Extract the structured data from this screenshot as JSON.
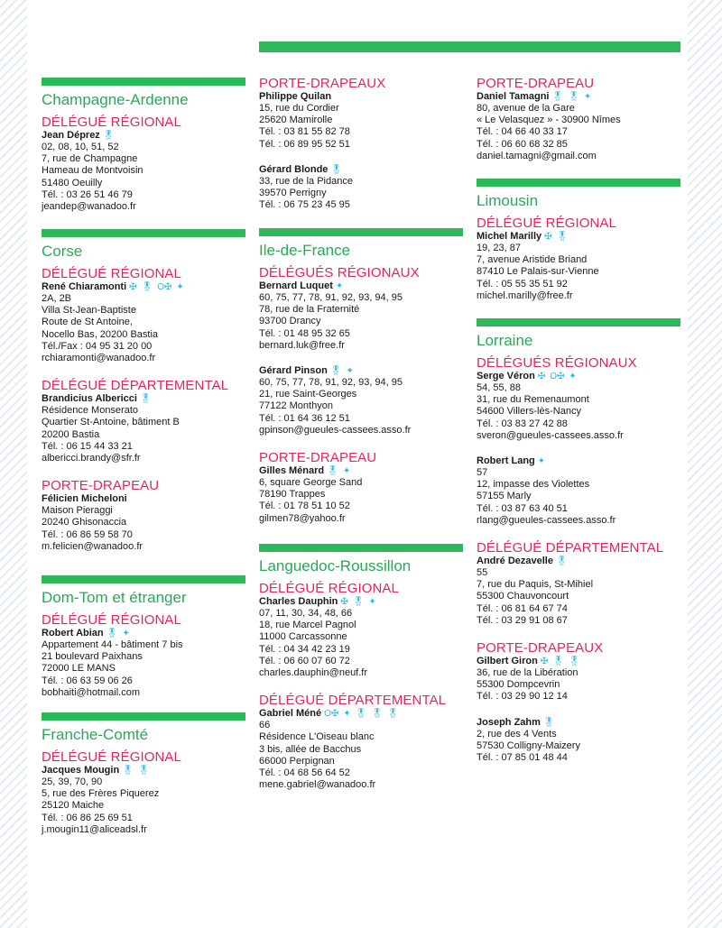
{
  "medal_icons": {
    "medal-icon": "🎖",
    "cross-medal-icon": "✠",
    "order-medal-icon": "O",
    "star-medal-icon": "✦"
  },
  "colors": {
    "green": "#2db85a",
    "title_green": "#2aa85a",
    "role_pink": "#e3265a",
    "medal_blue": "#2fb8e5"
  },
  "col1": {
    "champagne": {
      "title": "Champagne-Ardenne",
      "roles": [
        {
          "label": "DÉLÉGUÉ RÉGIONAL",
          "people": [
            {
              "name": "Jean Déprez",
              "medals": [
                "🎖"
              ],
              "lines": [
                "02, 08, 10, 51, 52",
                "7, rue de Champagne",
                "Hameau de Montvoisin",
                "51480 Oeuilly",
                "Tél. : 03 26 51 46 79",
                "jeandep@wanadoo.fr"
              ]
            }
          ]
        }
      ]
    },
    "corse": {
      "title": "Corse",
      "roles": [
        {
          "label": "DÉLÉGUÉ RÉGIONAL",
          "people": [
            {
              "name": "René Chiaramonti",
              "medals": [
                "✠",
                "🎖",
                "O✠",
                "✦"
              ],
              "lines": [
                "2A, 2B",
                "Villa St-Jean-Baptiste",
                "Route de St Antoine,",
                "Nocello Bas, 20200 Bastia",
                "Tél./Fax : 04 95 31 20 00",
                "rchiaramonti@wanadoo.fr"
              ]
            }
          ]
        },
        {
          "label": "DÉLÉGUÉ DÉPARTEMENTAL",
          "people": [
            {
              "name": "Brandicius Albericci",
              "medals": [
                "🎖"
              ],
              "lines": [
                "Résidence Monserato",
                "Quartier St-Antoine, bâtiment B",
                "20200 Bastia",
                "Tél. : 06 15 44 33 21",
                "albericci.brandy@sfr.fr"
              ]
            }
          ]
        },
        {
          "label": "PORTE-DRAPEAU",
          "people": [
            {
              "name": "Félicien Micheloni",
              "medals": [],
              "lines": [
                "Maison Pieraggi",
                "20240 Ghisonaccia",
                "Tél. : 06 86 59 58 70",
                "m.felicien@wanadoo.fr"
              ]
            }
          ]
        }
      ]
    },
    "domtom": {
      "title": "Dom-Tom et étranger",
      "roles": [
        {
          "label": "DÉLÉGUÉ RÉGIONAL",
          "people": [
            {
              "name": "Robert Abian",
              "medals": [
                "🎖",
                "✦"
              ],
              "lines": [
                "Appartement 44 - bâtiment 7 bis",
                "21 boulevard Paixhans",
                "72000 LE MANS",
                "Tél. : 06 63 59 06 26",
                "bobhaiti@hotmail.com"
              ]
            }
          ]
        }
      ]
    },
    "franche": {
      "title": "Franche-Comté",
      "roles": [
        {
          "label": "DÉLÉGUÉ RÉGIONAL",
          "people": [
            {
              "name": "Jacques Mougin",
              "medals": [
                "🎖",
                "🎖"
              ],
              "lines": [
                "25, 39, 70, 90",
                "5, rue des Frères Piquerez",
                "25120 Maiche",
                "Tél. : 06 86 25 69 51",
                "j.mougin11@aliceadsl.fr"
              ]
            }
          ]
        }
      ]
    }
  },
  "col2": {
    "portedrap": {
      "title": "",
      "roles": [
        {
          "label": "PORTE-DRAPEAUX",
          "people": [
            {
              "name": "Philippe Quilan",
              "medals": [],
              "lines": [
                "15, rue du Cordier",
                "25620 Mamirolle",
                "Tél. : 03 81 55 82 78",
                "Tél. : 06 89 95 52 51"
              ]
            },
            {
              "name": "Gérard Blonde",
              "medals": [
                "🎖"
              ],
              "lines": [
                "33, rue de la Pidance",
                "39570 Perrigny",
                "Tél. : 06 75 23 45 95"
              ]
            }
          ]
        }
      ]
    },
    "idf": {
      "title": "Ile-de-France",
      "roles": [
        {
          "label": "DÉLÉGUÉS RÉGIONAUX",
          "people": [
            {
              "name": "Bernard Luquet",
              "medals": [
                "✦"
              ],
              "lines": [
                "60, 75, 77, 78, 91, 92, 93, 94, 95",
                "78, rue de la Fraternité",
                "93700 Drancy",
                "Tél. : 01 48 95 32 65",
                "bernard.luk@free.fr"
              ]
            },
            {
              "name": "Gérard Pinson",
              "medals": [
                "🎖",
                "✦"
              ],
              "lines": [
                "60, 75, 77, 78, 91, 92, 93, 94, 95",
                "21, rue Saint-Georges",
                "77122 Monthyon",
                "Tél. : 01 64 36 12 51",
                "gpinson@gueules-cassees.asso.fr"
              ]
            }
          ]
        },
        {
          "label": "PORTE-DRAPEAU",
          "people": [
            {
              "name": "Gilles Ménard",
              "medals": [
                "🎖",
                "✦"
              ],
              "lines": [
                "6, square George Sand",
                "78190 Trappes",
                "Tél. : 01 78 51 10 52",
                "gilmen78@yahoo.fr"
              ]
            }
          ]
        }
      ]
    },
    "languedoc": {
      "title": "Languedoc-Roussillon",
      "roles": [
        {
          "label": "DÉLÉGUÉ RÉGIONAL",
          "people": [
            {
              "name": "Charles Dauphin",
              "medals": [
                "✠",
                "🎖",
                "✦"
              ],
              "lines": [
                "07, 11, 30, 34, 48, 66",
                "18, rue Marcel Pagnol",
                "11000 Carcassonne",
                "Tél. : 04 34 42 23 19",
                "Tél. : 06 60 07 60 72",
                "charles.dauphin@neuf.fr"
              ]
            }
          ]
        },
        {
          "label": "DÉLÉGUÉ DÉPARTEMENTAL",
          "people": [
            {
              "name": "Gabriel Méné",
              "medals": [
                "O✠",
                "✦",
                "🎖",
                "🎖",
                "🎖"
              ],
              "lines": [
                "66",
                "Résidence L'Oiseau blanc",
                "3 bis, allée de Bacchus",
                "66000 Perpignan",
                "Tél. : 04 68 56 64 52",
                "mene.gabriel@wanadoo.fr"
              ]
            }
          ]
        }
      ]
    }
  },
  "col3": {
    "portedrap": {
      "title": "",
      "roles": [
        {
          "label": "PORTE-DRAPEAU",
          "people": [
            {
              "name": "Daniel Tamagni",
              "medals": [
                "🎖",
                "🎖",
                "✦"
              ],
              "lines": [
                "80, avenue de la Gare",
                "« Le Velasquez » - 30900 Nîmes",
                "Tél. : 04 66 40 33 17",
                "Tél. : 06 60 68 32 85",
                "daniel.tamagni@gmail.com"
              ]
            }
          ]
        }
      ]
    },
    "limousin": {
      "title": "Limousin",
      "roles": [
        {
          "label": "DÉLÉGUÉ RÉGIONAL",
          "people": [
            {
              "name": "Michel Marilly",
              "medals": [
                "✠",
                "🎖"
              ],
              "lines": [
                "19, 23, 87",
                "7, avenue Aristide Briand",
                "87410 Le Palais-sur-Vienne",
                "Tél. : 05 55 35 51 92",
                "michel.marilly@free.fr"
              ]
            }
          ]
        }
      ]
    },
    "lorraine": {
      "title": "Lorraine",
      "roles": [
        {
          "label": "DÉLÉGUÉS RÉGIONAUX",
          "people": [
            {
              "name": "Serge Véron",
              "medals": [
                "✠",
                "O✠",
                "✦"
              ],
              "lines": [
                "54, 55, 88",
                "31, rue du Remenaumont",
                "54600 Villers-lès-Nancy",
                "Tél. : 03 83 27 42 88",
                "sveron@gueules-cassees.asso.fr"
              ]
            },
            {
              "name": "Robert Lang",
              "medals": [
                "✦"
              ],
              "lines": [
                "57",
                "12, impasse des Violettes",
                "57155 Marly",
                "Tél. : 03 87 63 40 51",
                "rlang@gueules-cassees.asso.fr"
              ]
            }
          ]
        },
        {
          "label": "DÉLÉGUÉ DÉPARTEMENTAL",
          "people": [
            {
              "name": "André Dezavelle",
              "medals": [
                "🎖"
              ],
              "lines": [
                "55",
                "7, rue du Paquis, St-Mihiel",
                "55300 Chauvoncourt",
                "Tél. : 06 81 64 67 74",
                "Tél. : 03 29 91 08 67"
              ]
            }
          ]
        },
        {
          "label": "PORTE-DRAPEAUX",
          "people": [
            {
              "name": "Gilbert Giron",
              "medals": [
                "✠",
                "🎖",
                "🎖"
              ],
              "lines": [
                "36, rue de la Libération",
                "55300 Dompcevrin",
                "Tél. : 03 29 90 12 14"
              ]
            },
            {
              "name": "Joseph Zahm",
              "medals": [
                "🎖"
              ],
              "lines": [
                "2, rue des 4 Vents",
                "57530 Colligny-Maizery",
                "Tél. : 07 85 01 48 44"
              ]
            }
          ]
        }
      ]
    }
  }
}
